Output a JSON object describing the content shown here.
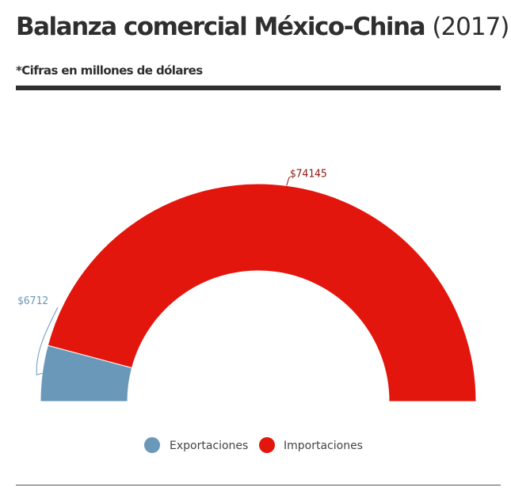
{
  "header": {
    "title_main": "Balanza comercial México-China",
    "title_year": "(2017)",
    "subtitle": "*Cifras en millones de dólares"
  },
  "colors": {
    "exportaciones": "#6a98b9",
    "importaciones": "#e2160c",
    "text_dark": "#2f2f2f"
  },
  "chart_data": {
    "type": "pie",
    "variant": "half-donut",
    "title": "Balanza comercial México-China (2017)",
    "subtitle": "*Cifras en millones de dólares",
    "categories": [
      "Exportaciones",
      "Importaciones"
    ],
    "values": [
      6712,
      74145
    ],
    "data_labels": [
      "$6712",
      "$74145"
    ],
    "legend": {
      "placement": "bottom-center",
      "entries": [
        "Exportaciones",
        "Importaciones"
      ]
    }
  }
}
